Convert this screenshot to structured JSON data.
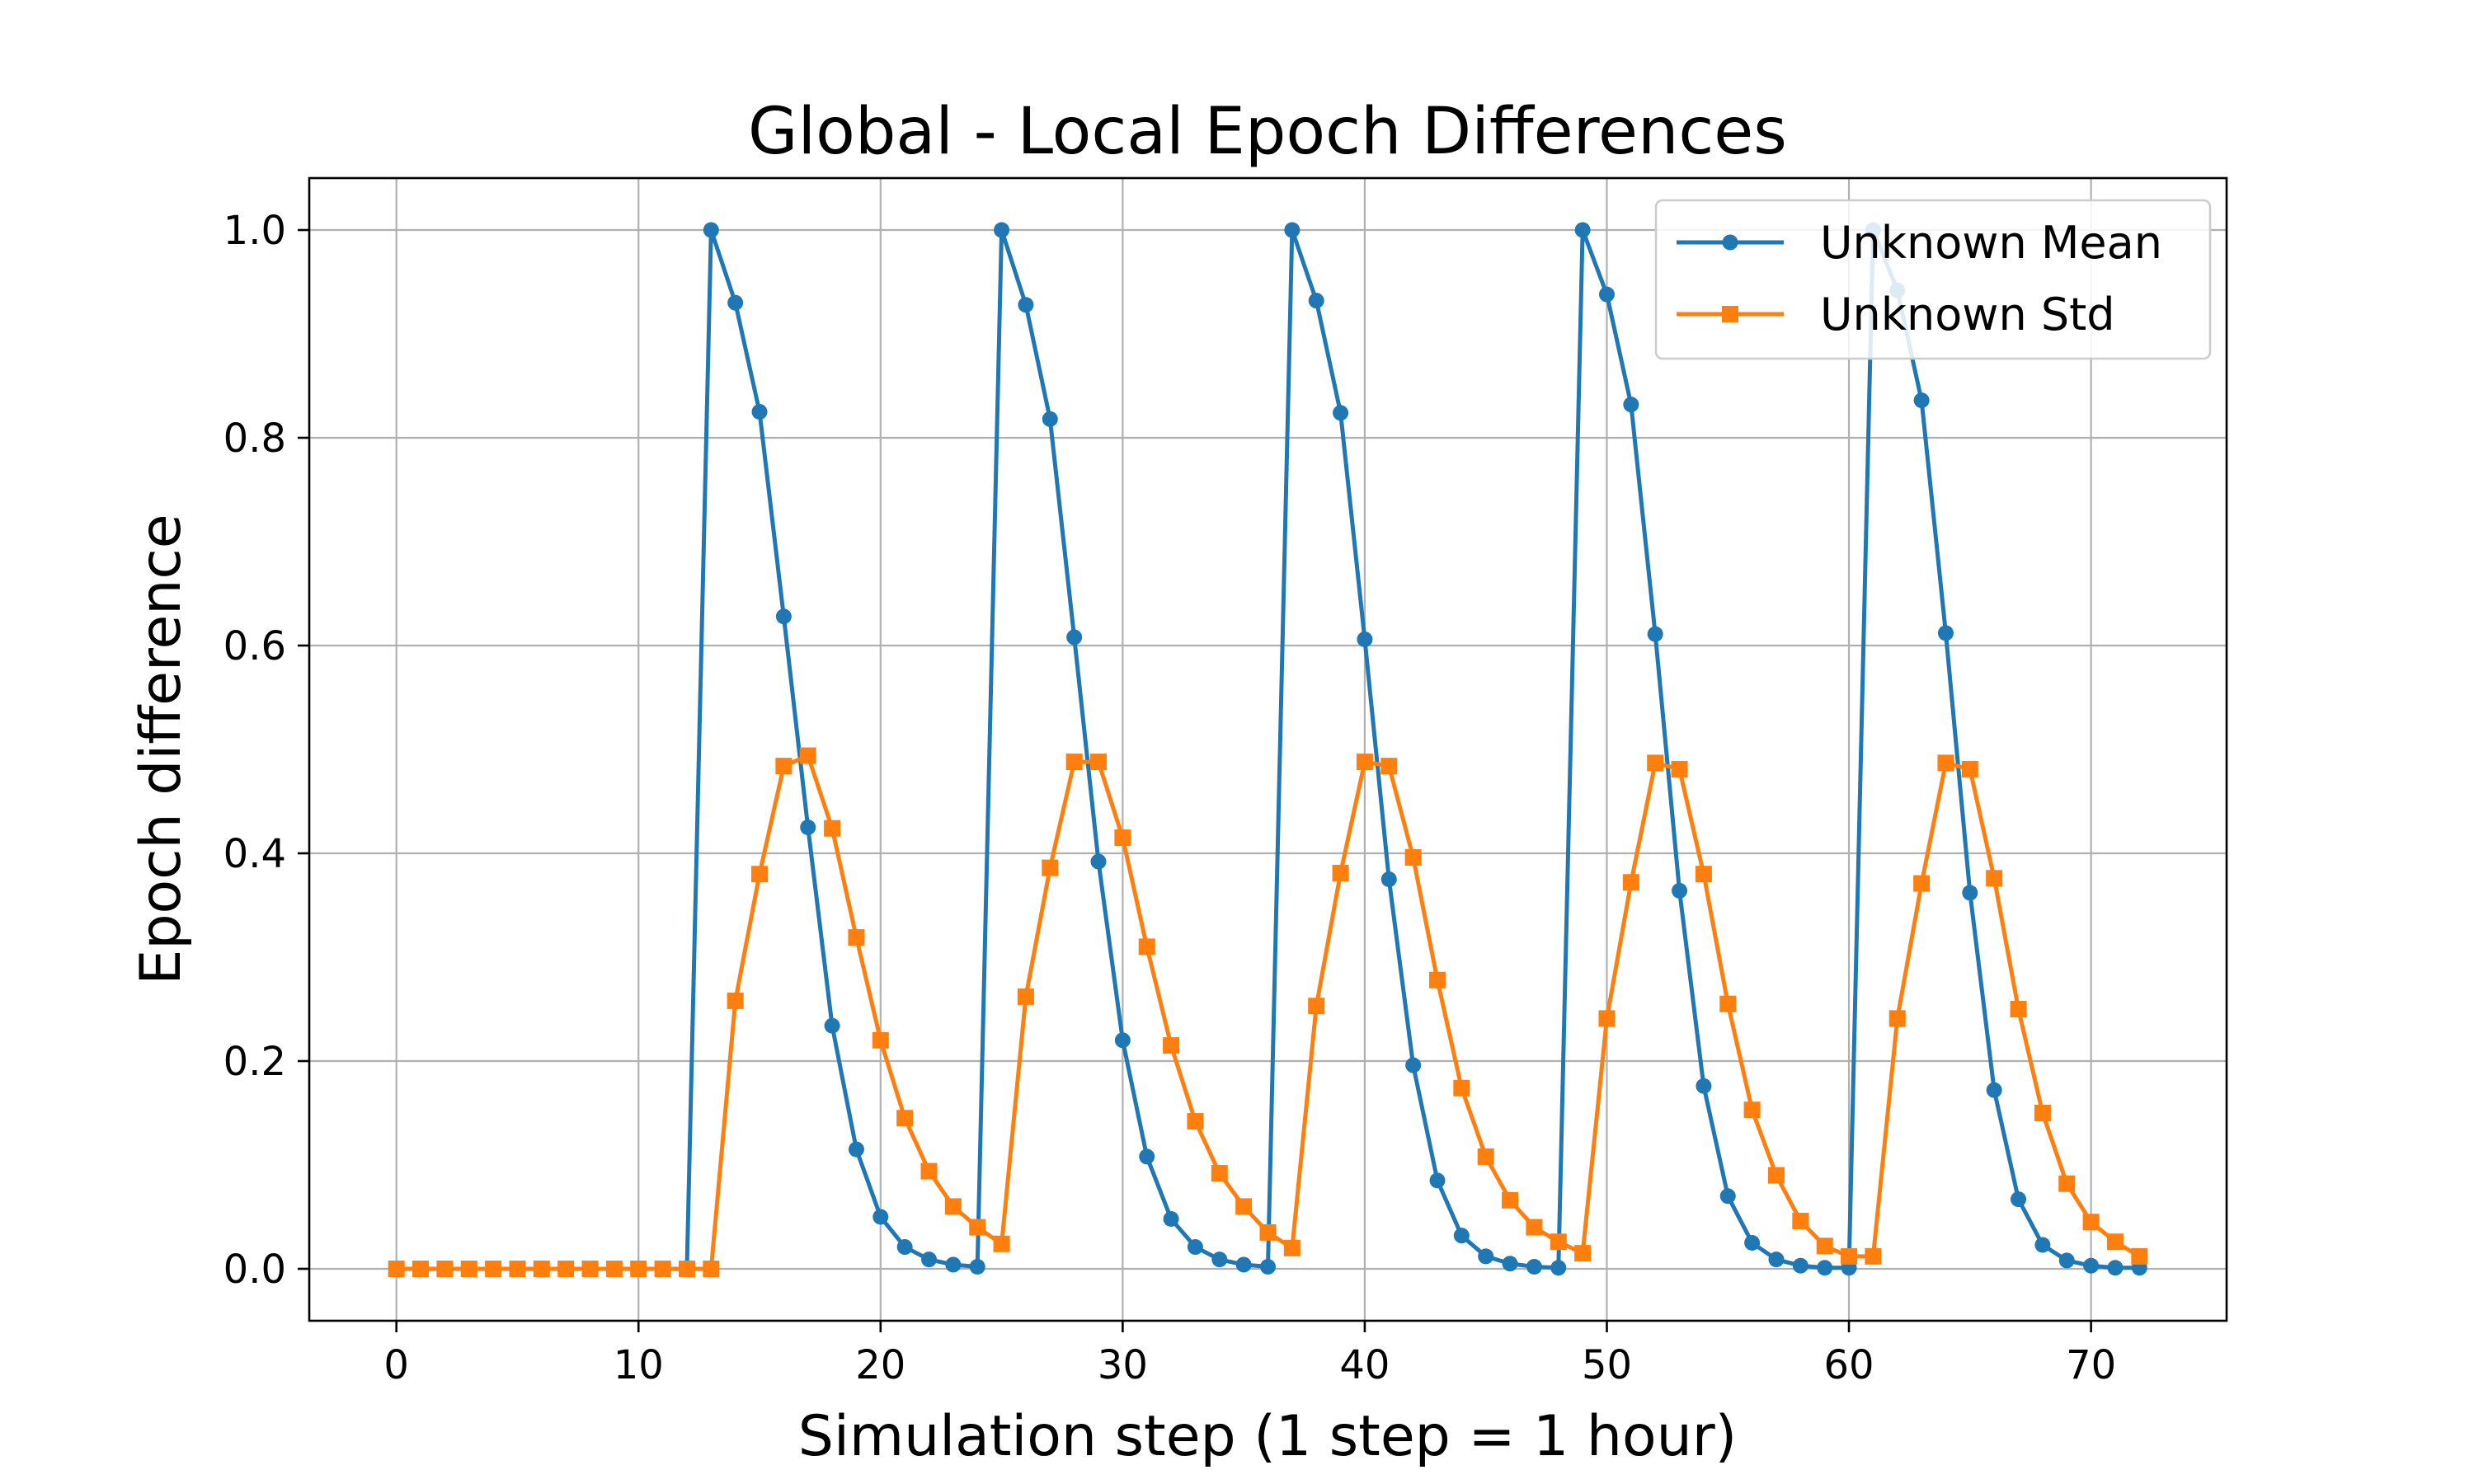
{
  "chart_data": {
    "type": "line",
    "title": "Global - Local Epoch Differences",
    "xlabel": "Simulation step (1 step = 1 hour)",
    "ylabel": "Epoch difference",
    "xlim": [
      -3.6,
      75.6
    ],
    "ylim": [
      -0.05,
      1.05
    ],
    "xticks": [
      0,
      10,
      20,
      30,
      40,
      50,
      60,
      70
    ],
    "yticks": [
      0.0,
      0.2,
      0.4,
      0.6,
      0.8,
      1.0
    ],
    "grid": true,
    "legend_position": "top-right",
    "x": [
      0,
      1,
      2,
      3,
      4,
      5,
      6,
      7,
      8,
      9,
      10,
      11,
      12,
      13,
      14,
      15,
      16,
      17,
      18,
      19,
      20,
      21,
      22,
      23,
      24,
      25,
      26,
      27,
      28,
      29,
      30,
      31,
      32,
      33,
      34,
      35,
      36,
      37,
      38,
      39,
      40,
      41,
      42,
      43,
      44,
      45,
      46,
      47,
      48,
      49,
      50,
      51,
      52,
      53,
      54,
      55,
      56,
      57,
      58,
      59,
      60,
      61,
      62,
      63,
      64,
      65,
      66,
      67,
      68,
      69,
      70,
      71,
      72
    ],
    "series": [
      {
        "name": "Unknown Mean",
        "color": "#1f77b4",
        "marker": "circle",
        "values": [
          0,
          0,
          0,
          0,
          0,
          0,
          0,
          0,
          0,
          0,
          0,
          0,
          0,
          1.0,
          0.93,
          0.825,
          0.628,
          0.425,
          0.234,
          0.115,
          0.05,
          0.021,
          0.009,
          0.004,
          0.002,
          1.0,
          0.928,
          0.818,
          0.608,
          0.392,
          0.22,
          0.108,
          0.048,
          0.021,
          0.009,
          0.004,
          0.002,
          1.0,
          0.932,
          0.824,
          0.606,
          0.375,
          0.196,
          0.085,
          0.032,
          0.012,
          0.005,
          0.002,
          0.001,
          1.0,
          0.938,
          0.832,
          0.611,
          0.364,
          0.176,
          0.07,
          0.025,
          0.009,
          0.003,
          0.001,
          0.001,
          1.0,
          0.942,
          0.836,
          0.612,
          0.362,
          0.172,
          0.067,
          0.023,
          0.008,
          0.003,
          0.001,
          0.001
        ]
      },
      {
        "name": "Unknown Std",
        "color": "#ff7f0e",
        "marker": "square",
        "values": [
          0,
          0,
          0,
          0,
          0,
          0,
          0,
          0,
          0,
          0,
          0,
          0,
          0,
          0,
          0.258,
          0.38,
          0.484,
          0.494,
          0.424,
          0.319,
          0.22,
          0.145,
          0.094,
          0.06,
          0.04,
          0.024,
          0.262,
          0.386,
          0.488,
          0.488,
          0.415,
          0.31,
          0.215,
          0.142,
          0.092,
          0.06,
          0.035,
          0.02,
          0.253,
          0.381,
          0.488,
          0.484,
          0.396,
          0.278,
          0.174,
          0.108,
          0.066,
          0.04,
          0.026,
          0.015,
          0.241,
          0.372,
          0.487,
          0.481,
          0.38,
          0.255,
          0.153,
          0.09,
          0.046,
          0.022,
          0.012,
          0.012,
          0.241,
          0.371,
          0.487,
          0.481,
          0.376,
          0.25,
          0.15,
          0.082,
          0.045,
          0.026,
          0.012
        ]
      }
    ]
  }
}
